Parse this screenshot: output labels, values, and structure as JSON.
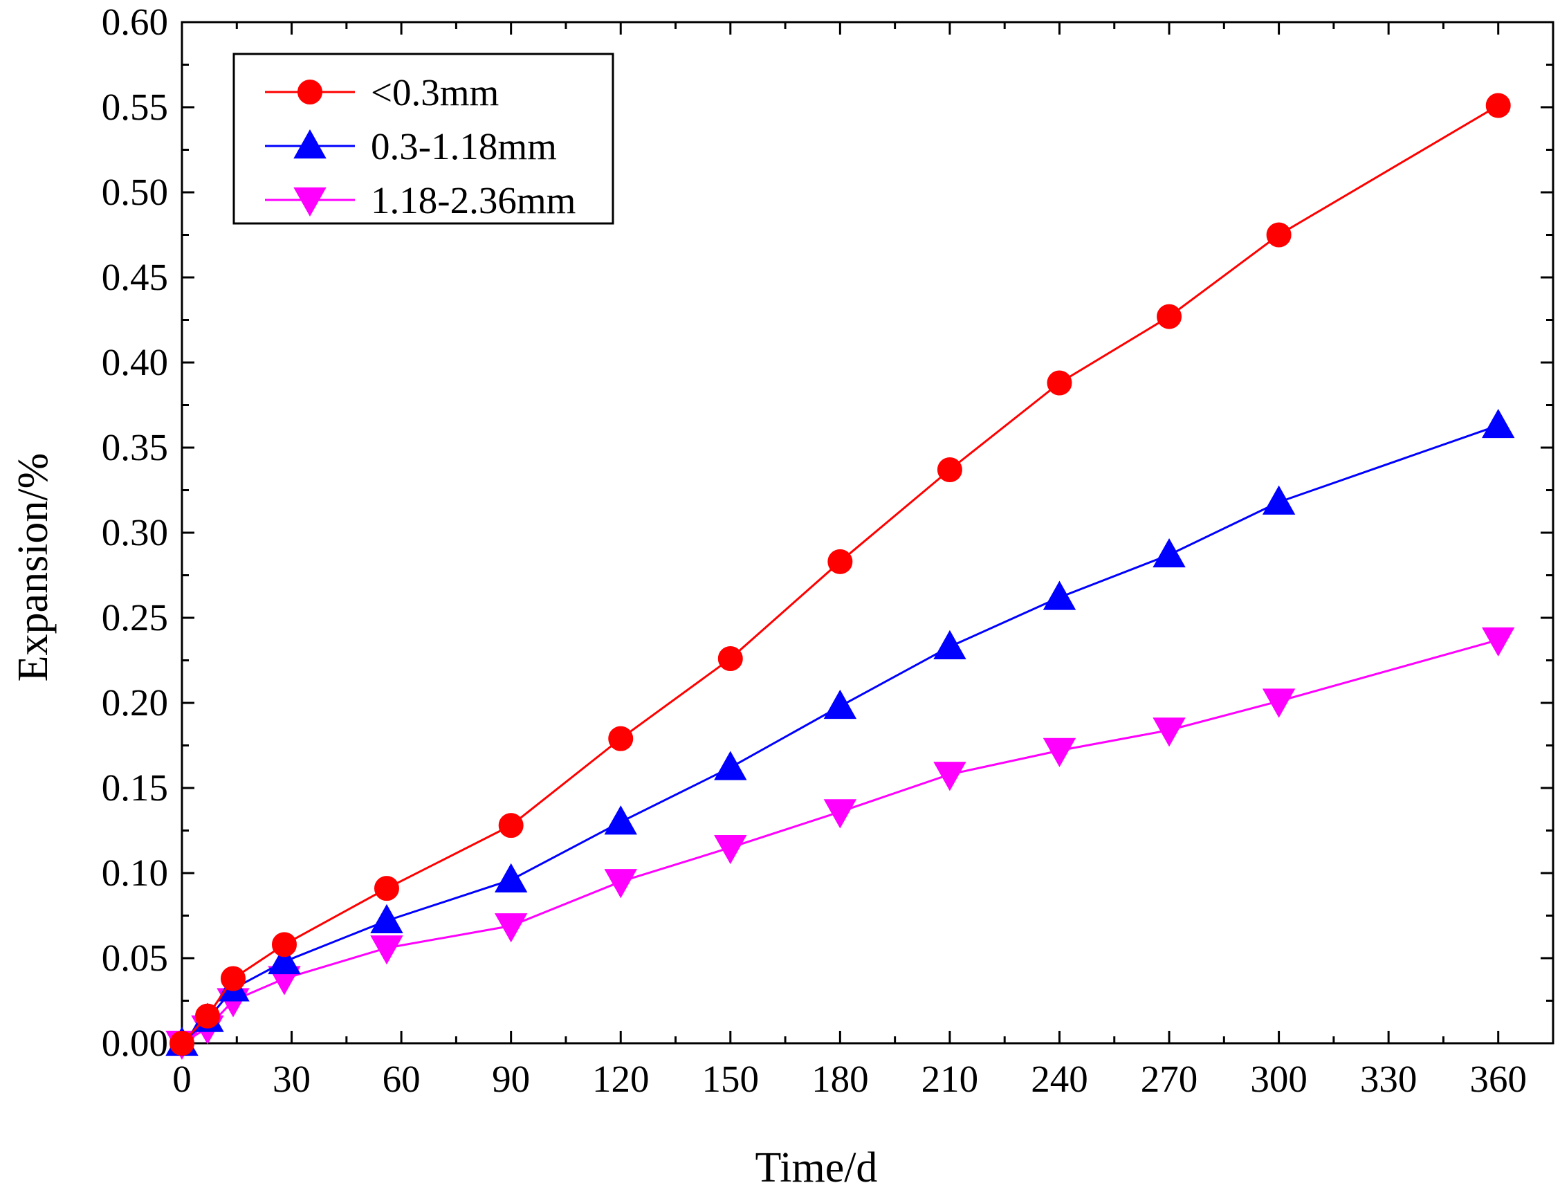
{
  "chart_data": {
    "type": "line",
    "title": "",
    "xlabel": "Time/d",
    "ylabel": "Expansion/%",
    "xlim": [
      0,
      375
    ],
    "ylim": [
      0,
      0.6
    ],
    "x_ticks": [
      0,
      30,
      60,
      90,
      120,
      150,
      180,
      210,
      240,
      270,
      300,
      330,
      360
    ],
    "x_tick_labels": [
      "0",
      "30",
      "60",
      "90",
      "120",
      "150",
      "180",
      "210",
      "240",
      "270",
      "300",
      "330",
      "360"
    ],
    "y_ticks": [
      0,
      0.05,
      0.1,
      0.15,
      0.2,
      0.25,
      0.3,
      0.35,
      0.4,
      0.45,
      0.5,
      0.55,
      0.6
    ],
    "y_tick_labels": [
      "0.00",
      "0.05",
      "0.10",
      "0.15",
      "0.20",
      "0.25",
      "0.30",
      "0.35",
      "0.40",
      "0.45",
      "0.50",
      "0.55",
      "0.60"
    ],
    "grid": false,
    "legend_position": "top-left",
    "x": [
      0,
      7,
      14,
      28,
      56,
      90,
      120,
      150,
      180,
      210,
      240,
      270,
      300,
      360
    ],
    "series": [
      {
        "name": "<0.3mm",
        "color": "#ff0000",
        "marker": "circle",
        "values": [
          0.0,
          0.016,
          0.038,
          0.058,
          0.091,
          0.128,
          0.179,
          0.226,
          0.283,
          0.337,
          0.388,
          0.427,
          0.475,
          0.551
        ]
      },
      {
        "name": "0.3-1.18mm",
        "color": "#0000ff",
        "marker": "triangle-up",
        "values": [
          0.0,
          0.014,
          0.032,
          0.048,
          0.072,
          0.096,
          0.13,
          0.162,
          0.198,
          0.233,
          0.262,
          0.287,
          0.318,
          0.363
        ]
      },
      {
        "name": "1.18-2.36mm",
        "color": "#ff00ff",
        "marker": "triangle-down",
        "values": [
          0.0,
          0.009,
          0.025,
          0.038,
          0.056,
          0.069,
          0.095,
          0.115,
          0.136,
          0.158,
          0.172,
          0.184,
          0.201,
          0.237
        ]
      }
    ]
  }
}
